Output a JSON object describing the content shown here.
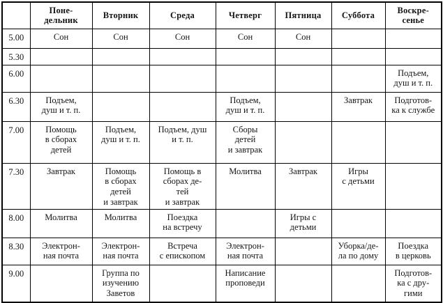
{
  "table": {
    "corner_label": "",
    "columns": [
      "Поне-\nдельник",
      "Вторник",
      "Среда",
      "Четверг",
      "Пятница",
      "Суббота",
      "Воскре-\nсенье"
    ],
    "rows": [
      {
        "time": "5.00",
        "cells": [
          "Сон",
          "Сон",
          "Сон",
          "Сон",
          "Сон",
          "",
          ""
        ]
      },
      {
        "time": "5.30",
        "cells": [
          "",
          "",
          "",
          "",
          "",
          "",
          ""
        ]
      },
      {
        "time": "6.00",
        "cells": [
          "",
          "",
          "",
          "",
          "",
          "",
          "Подъем,\nдуш и т. п."
        ]
      },
      {
        "time": "6.30",
        "cells": [
          "Подъем,\nдуш и т. п.",
          "",
          "",
          "Подъем,\nдуш и т. п.",
          "",
          "Завтрак",
          "Подготов-\nка к службе"
        ]
      },
      {
        "time": "7.00",
        "cells": [
          "Помощь\nв сборах\nдетей",
          "Подъем,\nдуш и т. п.",
          "Подъем, душ\nи т. п.",
          "Сборы\nдетей\nи завтрак",
          "",
          "",
          ""
        ]
      },
      {
        "time": "7.30",
        "cells": [
          "Завтрак",
          "Помощь\nв сборах\nдетей\nи завтрак",
          "Помощь в\nсборах де-\nтей\nи завтрак",
          "Молитва",
          "Завтрак",
          "Игры\nс детьми",
          ""
        ]
      },
      {
        "time": "8.00",
        "cells": [
          "Молитва",
          "Молитва",
          "Поездка\nна встречу",
          "",
          "Игры с\nдетьми",
          "",
          ""
        ]
      },
      {
        "time": "8.30",
        "cells": [
          "Электрон-\nная почта",
          "Электрон-\nная почта",
          "Встреча\nс епископом",
          "Электрон-\nная почта",
          "",
          "Уборка/де-\nла по дому",
          "Поездка\nв церковь"
        ]
      },
      {
        "time": "9.00",
        "cells": [
          "",
          "Группа по\nизучению\nЗаветов",
          "",
          "Написание\nпроповеди",
          "",
          "",
          "Подготов-\nка с дру-\nгими"
        ]
      }
    ]
  }
}
